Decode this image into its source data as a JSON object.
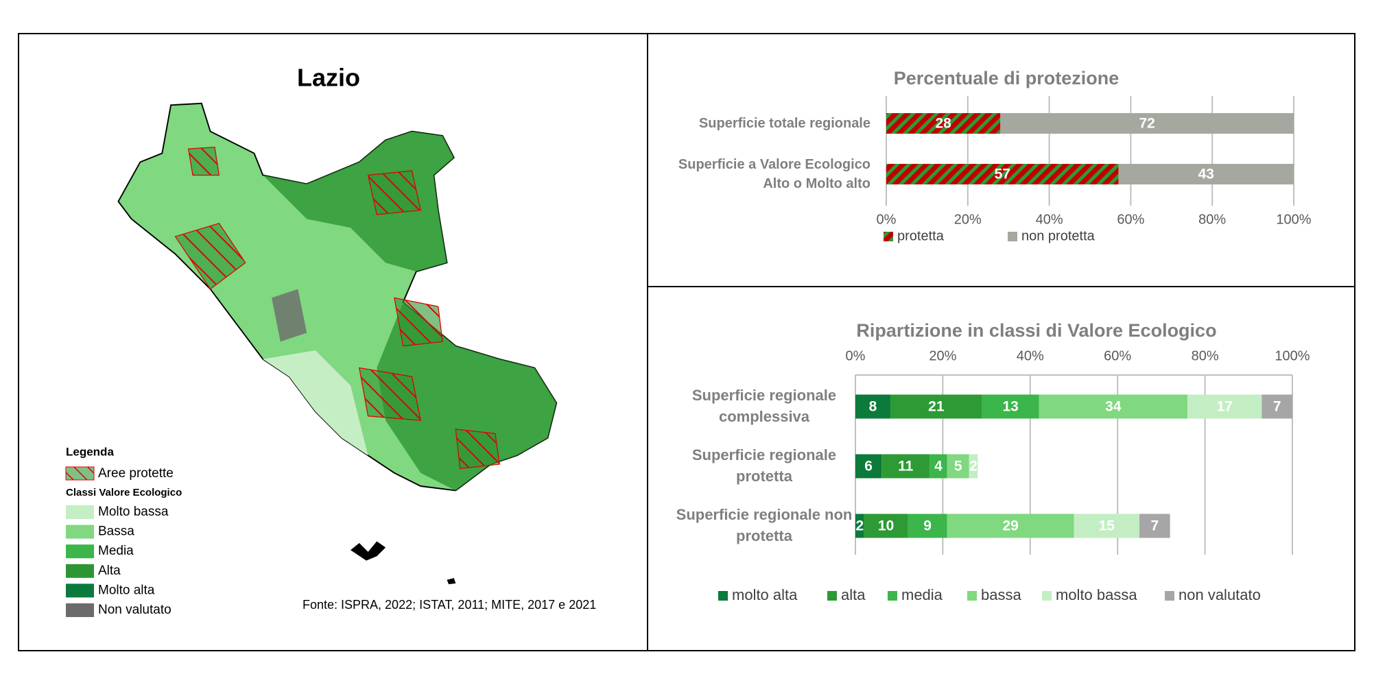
{
  "map": {
    "title": "Lazio",
    "legend": {
      "title": "Legenda",
      "protected_label": "Aree protette",
      "protected_color": "#e00000",
      "classes_title": "Classi Valore Ecologico",
      "classes": [
        {
          "label": "Molto bassa",
          "color": "#c5eec5"
        },
        {
          "label": "Bassa",
          "color": "#80d880"
        },
        {
          "label": "Media",
          "color": "#3cb54a"
        },
        {
          "label": "Alta",
          "color": "#2d9632"
        },
        {
          "label": "Molto alta",
          "color": "#0b7a3b"
        },
        {
          "label": "Non valutato",
          "color": "#6b6b6b"
        }
      ]
    },
    "source": "Fonte: ISPRA, 2022; ISTAT, 2011; MITE, 2017 e 2021"
  },
  "chart_data": [
    {
      "type": "bar",
      "orientation": "horizontal",
      "stacked": true,
      "title": "Percentuale di protezione",
      "categories": [
        "Superficie totale regionale",
        "Superficie a Valore Ecologico Alto o Molto alto"
      ],
      "series": [
        {
          "name": "protetta",
          "color": "#c00000",
          "hatch_color": "#2e9a35",
          "values": [
            28,
            57
          ]
        },
        {
          "name": "non protetta",
          "color": "#a5a89f",
          "values": [
            72,
            43
          ]
        }
      ],
      "xlim": [
        0,
        100
      ],
      "xticks": [
        {
          "value": 0,
          "label": "0%"
        },
        {
          "value": 20,
          "label": "20%"
        },
        {
          "value": 40,
          "label": "40%"
        },
        {
          "value": 60,
          "label": "60%"
        },
        {
          "value": 80,
          "label": "80%"
        },
        {
          "value": 100,
          "label": "100%"
        }
      ],
      "grid": true,
      "axis_position": "bottom",
      "legend": "bottom"
    },
    {
      "type": "bar",
      "orientation": "horizontal",
      "stacked": true,
      "title": "Ripartizione in classi di Valore Ecologico",
      "categories": [
        "Superficie regionale complessiva",
        "Superficie regionale protetta",
        "Superficie regionale non protetta"
      ],
      "series": [
        {
          "name": "molto alta",
          "color": "#0b7a3b",
          "values": [
            8,
            6,
            2
          ]
        },
        {
          "name": "alta",
          "color": "#2e9a35",
          "values": [
            21,
            11,
            10
          ]
        },
        {
          "name": "media",
          "color": "#3cb54a",
          "values": [
            13,
            4,
            9
          ]
        },
        {
          "name": "bassa",
          "color": "#80d880",
          "values": [
            34,
            5,
            29
          ]
        },
        {
          "name": "molto bassa",
          "color": "#c3eec3",
          "values": [
            17,
            2,
            15
          ]
        },
        {
          "name": "non valutato",
          "color": "#a6a6a6",
          "values": [
            7,
            null,
            7
          ]
        }
      ],
      "xlim": [
        0,
        100
      ],
      "xticks": [
        {
          "value": 0,
          "label": "0%"
        },
        {
          "value": 20,
          "label": "20%"
        },
        {
          "value": 40,
          "label": "40%"
        },
        {
          "value": 60,
          "label": "60%"
        },
        {
          "value": 80,
          "label": "80%"
        },
        {
          "value": 100,
          "label": "100%"
        }
      ],
      "grid": true,
      "axis_position": "top",
      "legend": "bottom"
    }
  ]
}
